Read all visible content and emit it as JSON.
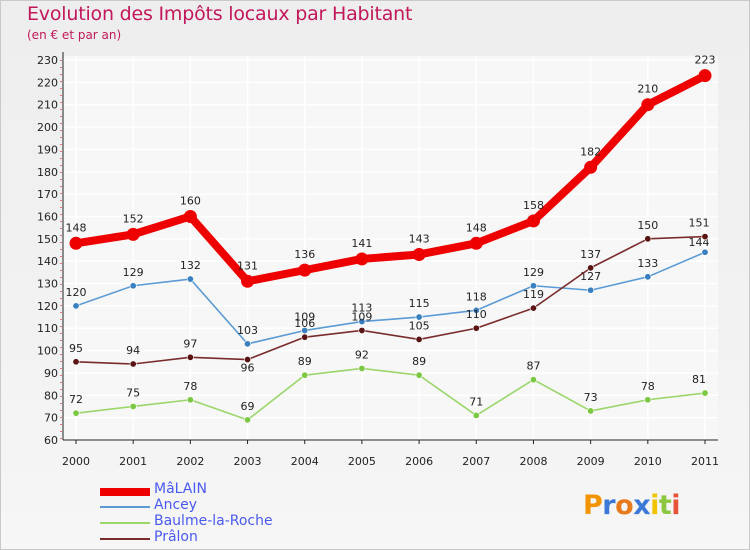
{
  "chart_data": {
    "type": "line",
    "title": "Evolution des Impôts locaux par Habitant",
    "subtitle": "(en € et par an)",
    "xlabel": "",
    "ylabel": "",
    "x": [
      "2000",
      "2001",
      "2002",
      "2003",
      "2004",
      "2005",
      "2006",
      "2007",
      "2008",
      "2009",
      "2010",
      "2011"
    ],
    "ylim": [
      60,
      230
    ],
    "yticks": [
      "60",
      "70",
      "80",
      "90",
      "100",
      "110",
      "120",
      "130",
      "140",
      "150",
      "160",
      "170",
      "180",
      "190",
      "200",
      "210",
      "220",
      "230"
    ],
    "grid": true,
    "series": [
      {
        "name": "Ancey",
        "color": "#5b9bd5",
        "point_color": "#3a7fc0",
        "values": [
          120,
          129,
          132,
          103,
          109,
          113,
          115,
          118,
          129,
          127,
          133,
          144
        ]
      },
      {
        "name": "Baulme-la-Roche",
        "color": "#9ad66a",
        "point_color": "#7cc744",
        "values": [
          72,
          75,
          78,
          69,
          89,
          92,
          89,
          71,
          87,
          73,
          78,
          81
        ]
      },
      {
        "name": "Prâlon",
        "color": "#7a2b2b",
        "point_color": "#5a1414",
        "values": [
          95,
          94,
          97,
          96,
          106,
          109,
          105,
          110,
          119,
          137,
          150,
          151
        ]
      },
      {
        "name": "MâLAIN",
        "color": "#ee0000",
        "point_color": "#ee0000",
        "values": [
          148,
          152,
          160,
          131,
          136,
          141,
          143,
          148,
          158,
          182,
          210,
          223
        ]
      }
    ]
  },
  "legend": {
    "items": [
      {
        "name": "MâLAIN",
        "color": "#ee0000"
      },
      {
        "name": "Ancey",
        "color": "#5b9bd5"
      },
      {
        "name": "Baulme-la-Roche",
        "color": "#9ad66a"
      },
      {
        "name": "Prâlon",
        "color": "#7a2b2b"
      }
    ]
  },
  "brand": {
    "letters": [
      "P",
      "r",
      "o",
      "x",
      "i",
      "t",
      "i"
    ],
    "colors": [
      "#f29400",
      "#3c78d8",
      "#e87a1a",
      "#3c78d8",
      "#f2c300",
      "#8dc63f",
      "#e8543a"
    ]
  }
}
